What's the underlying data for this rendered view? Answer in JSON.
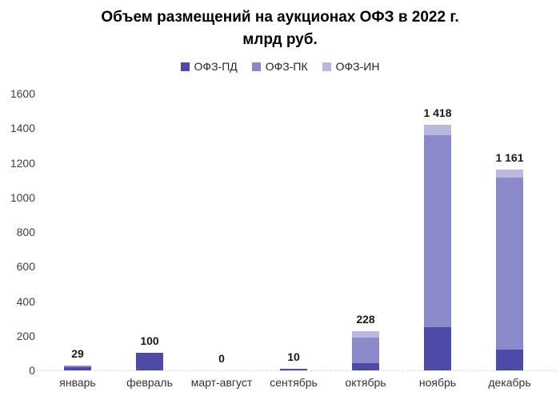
{
  "chart_data": {
    "type": "bar",
    "stacked": true,
    "title": "Объем размещений на аукционах ОФЗ в 2022 г.",
    "subtitle": "млрд руб.",
    "categories": [
      "январь",
      "февраль",
      "март-август",
      "сентябрь",
      "октябрь",
      "ноябрь",
      "декабрь"
    ],
    "series": [
      {
        "name": "ОФЗ-ПД",
        "color": "#4d4ba7",
        "values": [
          20,
          100,
          0,
          10,
          40,
          250,
          120
        ]
      },
      {
        "name": "ОФЗ-ПК",
        "color": "#8b89c9",
        "values": [
          9,
          0,
          0,
          0,
          152,
          1110,
          995
        ]
      },
      {
        "name": "ОФЗ-ИН",
        "color": "#bab8df",
        "values": [
          0,
          0,
          0,
          0,
          36,
          58,
          46
        ]
      }
    ],
    "totals": [
      29,
      100,
      0,
      10,
      228,
      1418,
      1161
    ],
    "total_labels": [
      "29",
      "100",
      "0",
      "10",
      "228",
      "1 418",
      "1 161"
    ],
    "yticks": [
      0,
      200,
      400,
      600,
      800,
      1000,
      1200,
      1400,
      1600
    ],
    "ylim": [
      0,
      1600
    ],
    "legend_position": "top",
    "grid": false,
    "colors": {
      "baseline": "#d9d9d9",
      "axis_text": "#404040",
      "value_label": "#1a1a1a"
    }
  }
}
